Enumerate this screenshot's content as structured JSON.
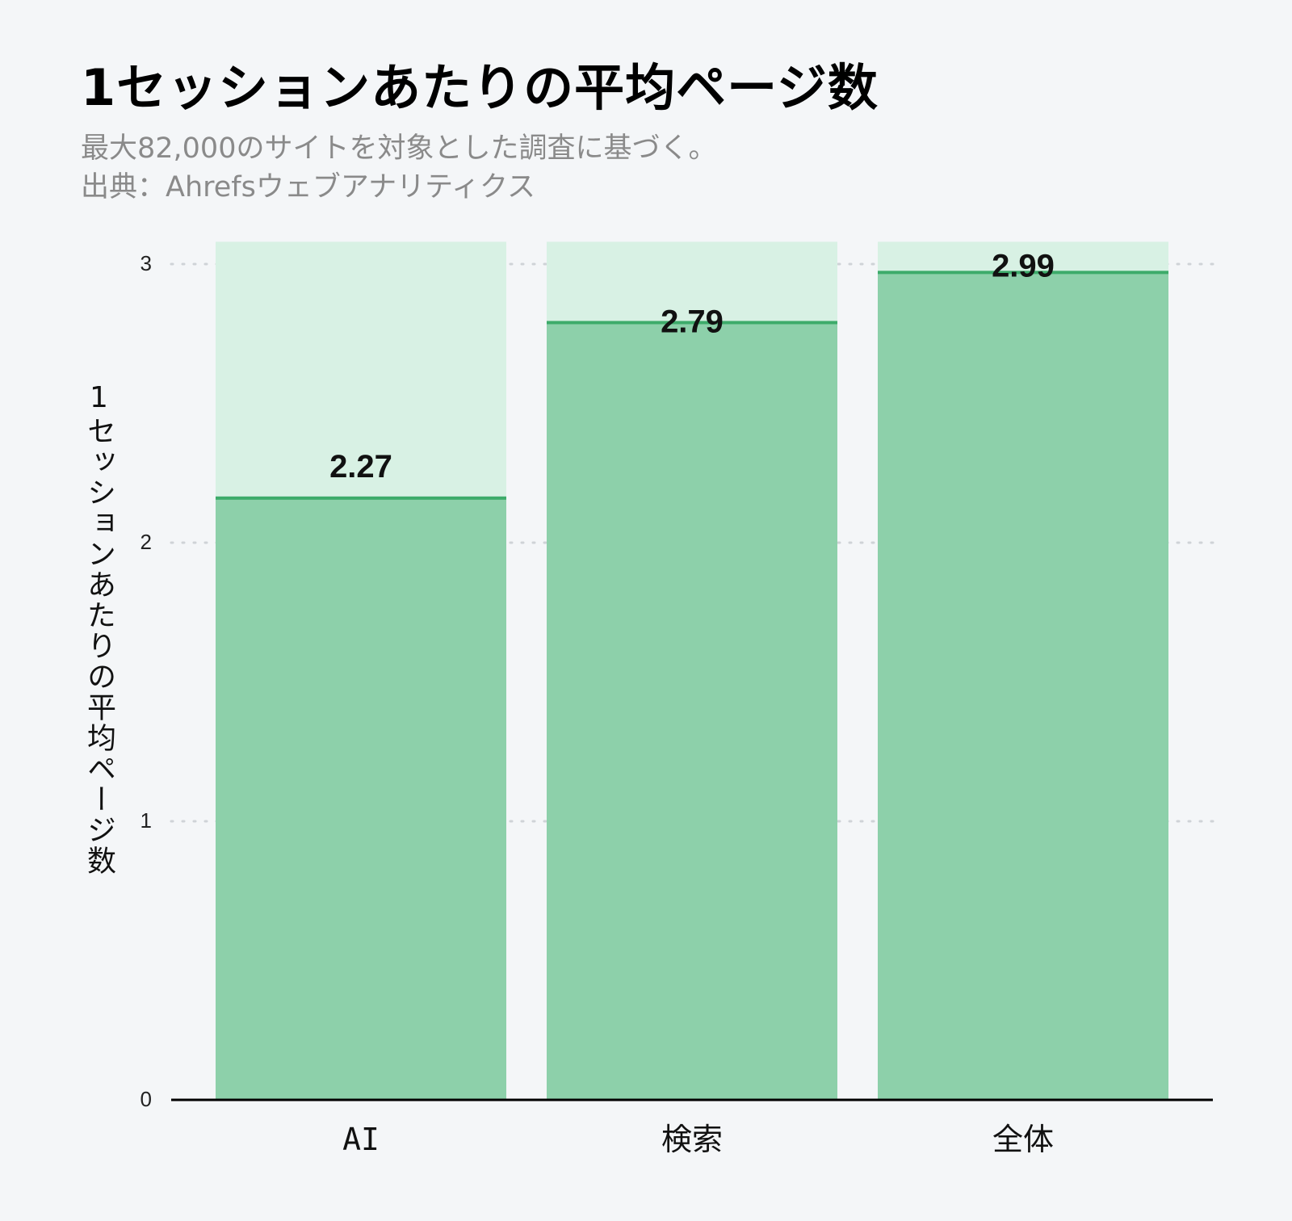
{
  "chart_data": {
    "type": "bar",
    "title": "1セッションあたりの平均ページ数",
    "subtitle_lines": [
      "最大82,000のサイトを対象とした調査に基づく。",
      "出典：Ahrefsウェブアナリティクス"
    ],
    "ylabel": "1セッションあたりの平均ページ数",
    "xlabel": "",
    "categories": [
      "AI",
      "検索",
      "全体"
    ],
    "values": [
      2.27,
      2.79,
      2.99
    ],
    "bar_fill_values": [
      2.16,
      2.79,
      2.97
    ],
    "value_labels": [
      "2.27",
      "2.79",
      "2.99"
    ],
    "yticks": [
      0,
      1,
      2,
      3
    ],
    "ylim": [
      0,
      3.08
    ],
    "grid": "horizontal dotted",
    "legend": "none",
    "colors": {
      "bar_fill": "#8dd0aa",
      "bar_background": "#d8f1e4",
      "bar_top_line": "#3dab6a",
      "axis": "#000000",
      "grid": "#cfd3d7",
      "value_label": "#111111",
      "tick_label": "#222222"
    }
  }
}
